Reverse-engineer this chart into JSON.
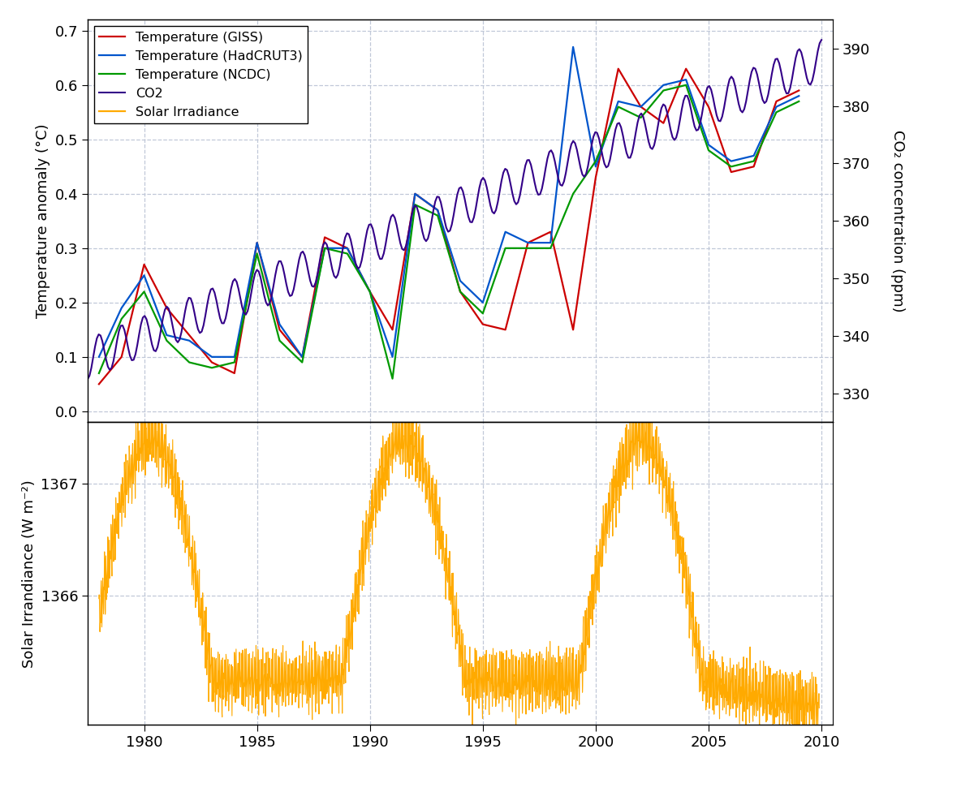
{
  "title": "",
  "xlim": [
    1977.5,
    2010.5
  ],
  "xticks": [
    1980,
    1985,
    1990,
    1995,
    2000,
    2005,
    2010
  ],
  "temp_ylim": [
    -0.02,
    0.72
  ],
  "temp_yticks": [
    0.0,
    0.1,
    0.2,
    0.3,
    0.4,
    0.5,
    0.6,
    0.7
  ],
  "co2_ylim": [
    325,
    395
  ],
  "co2_yticks": [
    330,
    340,
    350,
    360,
    370,
    380,
    390
  ],
  "solar_ylim": [
    1364.85,
    1367.55
  ],
  "solar_yticks": [
    1366,
    1367
  ],
  "ylabel_temp": "Temperature anomaly (°C)",
  "ylabel_co2": "CO₂ concentration (ppm)",
  "ylabel_solar": "Solar Irrandiance (W m⁻²)",
  "legend_labels": [
    "Temperature (GISS)",
    "Temperature (HadCRUT3)",
    "Temperature (NCDC)",
    "CO2",
    "Solar Irradiance"
  ],
  "line_colors": [
    "#cc0000",
    "#0055cc",
    "#009900",
    "#330088",
    "#ffaa00"
  ],
  "background_color": "#ffffff",
  "grid_color": "#c0c8d8"
}
